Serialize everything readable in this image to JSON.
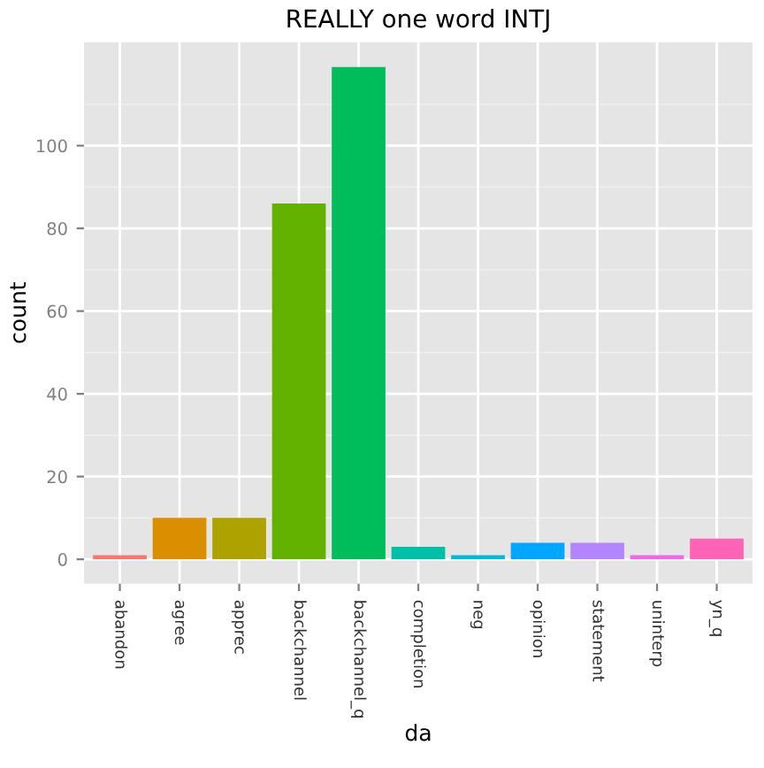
{
  "chart_data": {
    "type": "bar",
    "title": "REALLY one word INTJ",
    "xlabel": "da",
    "ylabel": "count",
    "categories": [
      "abandon",
      "agree",
      "apprec",
      "backchannel",
      "backchannel_q",
      "completion",
      "neg",
      "opinion",
      "statement",
      "uninterp",
      "yn_q"
    ],
    "values": [
      1,
      10,
      10,
      86,
      119,
      3,
      1,
      4,
      4,
      1,
      5
    ],
    "colors": [
      "#f8766d",
      "#db8e00",
      "#aea200",
      "#64b200",
      "#00bd5c",
      "#00c1a7",
      "#00bade",
      "#00a6ff",
      "#b385ff",
      "#ef67eb",
      "#ff63b6"
    ],
    "ylim": [
      -5.9,
      125
    ],
    "yticks": [
      0,
      20,
      40,
      60,
      80,
      100
    ],
    "grid": true,
    "legend": false
  }
}
